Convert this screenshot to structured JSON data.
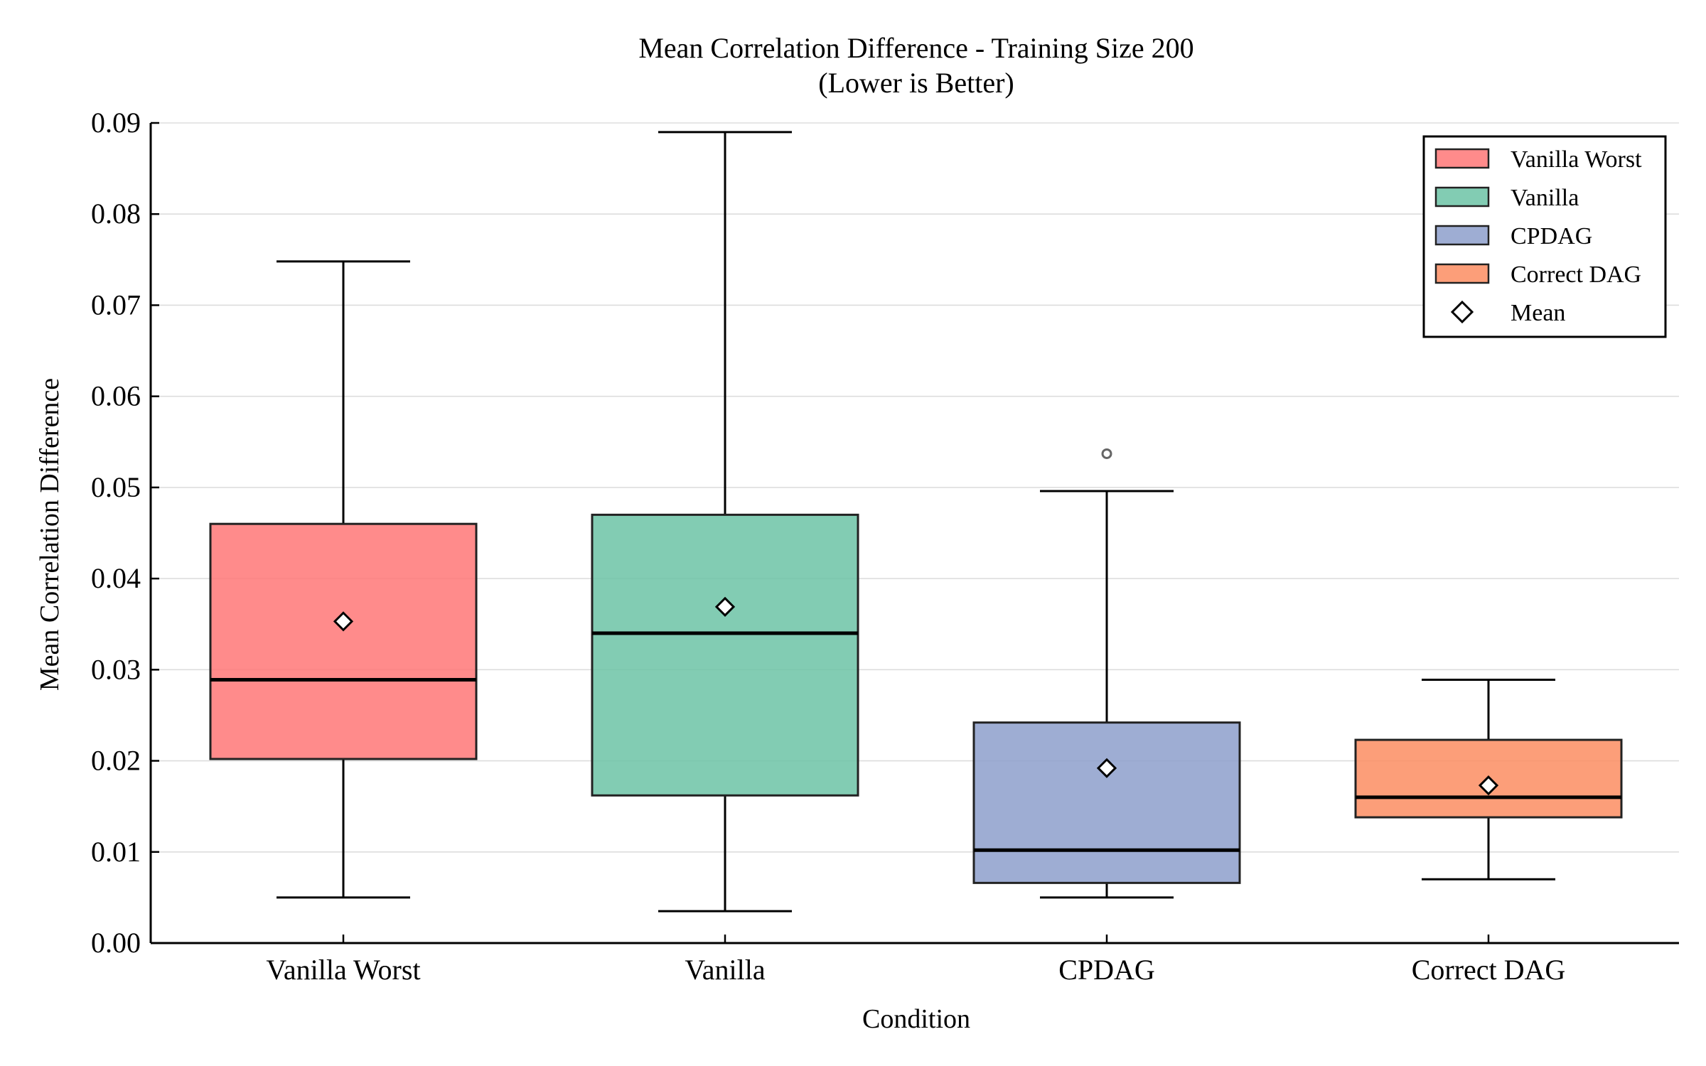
{
  "chart_data": {
    "type": "box",
    "title": "Mean Correlation Difference - Training Size 200",
    "subtitle": "(Lower is Better)",
    "xlabel": "Condition",
    "ylabel": "Mean Correlation Difference",
    "ylim": [
      0,
      0.09
    ],
    "yticks": [
      "0.00",
      "0.01",
      "0.02",
      "0.03",
      "0.04",
      "0.05",
      "0.06",
      "0.07",
      "0.08",
      "0.09"
    ],
    "grid": true,
    "legend_position": "top-right",
    "categories": [
      "Vanilla Worst",
      "Vanilla",
      "CPDAG",
      "Correct DAG"
    ],
    "series": [
      {
        "name": "Vanilla Worst",
        "color": "#ff7777",
        "whisker_low": 0.005,
        "q1": 0.0202,
        "median": 0.0289,
        "q3": 0.046,
        "whisker_high": 0.0748,
        "mean": 0.0353,
        "outliers": []
      },
      {
        "name": "Vanilla",
        "color": "#6cc3a6",
        "whisker_low": 0.0035,
        "q1": 0.0162,
        "median": 0.034,
        "q3": 0.047,
        "whisker_high": 0.089,
        "mean": 0.0369,
        "outliers": []
      },
      {
        "name": "CPDAG",
        "color": "#8d9fcb",
        "whisker_low": 0.005,
        "q1": 0.0066,
        "median": 0.0102,
        "q3": 0.0242,
        "whisker_high": 0.0496,
        "mean": 0.0192,
        "outliers": [
          0.0537
        ]
      },
      {
        "name": "Correct DAG",
        "color": "#fc8d62",
        "whisker_low": 0.007,
        "q1": 0.0138,
        "median": 0.016,
        "q3": 0.0223,
        "whisker_high": 0.0289,
        "mean": 0.0173,
        "outliers": []
      }
    ],
    "legend": [
      "Vanilla Worst",
      "Vanilla",
      "CPDAG",
      "Correct DAG",
      "Mean"
    ]
  }
}
